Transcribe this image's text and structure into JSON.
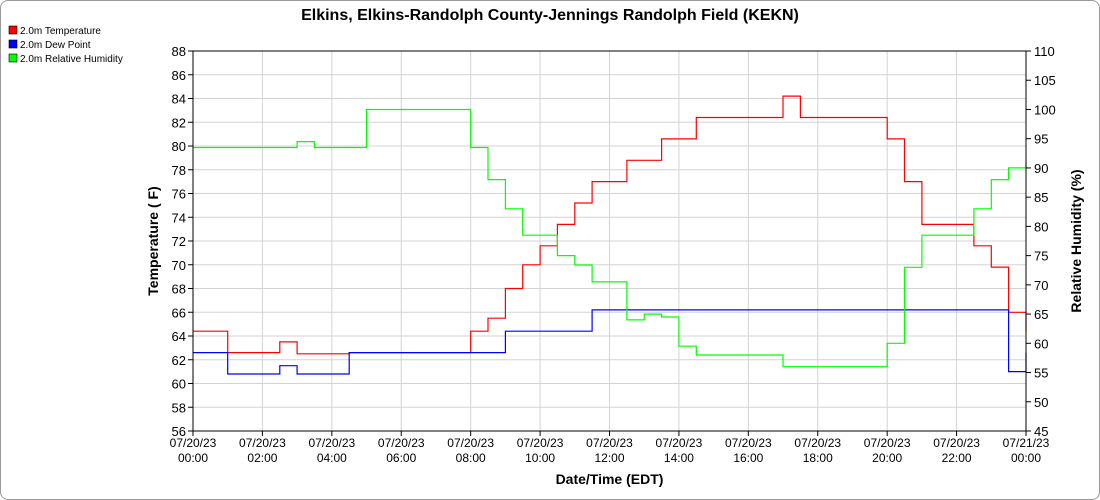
{
  "chart_data": {
    "type": "line",
    "title": "Elkins, Elkins-Randolph County-Jennings Randolph Field (KEKN)",
    "xlabel": "Date/Time (EDT)",
    "ylabel": "Temperature ( F)",
    "y2label": "Relative Humidity (%)",
    "ylim": [
      56,
      88
    ],
    "y2lim": [
      45,
      110
    ],
    "y_ticks": [
      "56",
      "58",
      "60",
      "62",
      "64",
      "66",
      "68",
      "70",
      "72",
      "74",
      "76",
      "78",
      "80",
      "82",
      "84",
      "86",
      "88"
    ],
    "y2_ticks": [
      "45",
      "50",
      "55",
      "60",
      "65",
      "70",
      "75",
      "80",
      "85",
      "90",
      "95",
      "100",
      "105",
      "110"
    ],
    "x_tick_dates": [
      "07/20/23",
      "07/20/23",
      "07/20/23",
      "07/20/23",
      "07/20/23",
      "07/20/23",
      "07/20/23",
      "07/20/23",
      "07/20/23",
      "07/20/23",
      "07/20/23",
      "07/20/23",
      "07/21/23"
    ],
    "x_tick_times": [
      "00:00",
      "02:00",
      "04:00",
      "06:00",
      "08:00",
      "10:00",
      "12:00",
      "14:00",
      "16:00",
      "18:00",
      "20:00",
      "22:00",
      "00:00"
    ],
    "grid": true,
    "legend_position": "top-left",
    "x_hours": [
      0,
      0.5,
      1,
      1.5,
      2,
      2.5,
      3,
      3.5,
      4,
      4.5,
      5,
      5.5,
      6,
      6.5,
      7,
      7.5,
      8,
      8.5,
      9,
      9.5,
      10,
      10.5,
      11,
      11.5,
      12,
      12.5,
      13,
      13.5,
      14,
      14.5,
      15,
      15.5,
      16,
      16.5,
      17,
      17.5,
      18,
      18.5,
      19,
      19.5,
      20,
      20.5,
      21,
      21.5,
      22,
      22.5,
      23,
      23.5,
      24
    ],
    "series": [
      {
        "name": "2.0m Temperature",
        "color": "#ff0000",
        "axis": "left",
        "values": [
          64.4,
          64.4,
          62.6,
          62.6,
          62.6,
          63.5,
          62.5,
          62.5,
          62.5,
          62.6,
          62.6,
          62.6,
          62.6,
          62.6,
          62.6,
          62.6,
          64.4,
          65.5,
          68,
          70,
          71.6,
          73.4,
          75.2,
          77,
          77,
          78.8,
          78.8,
          80.6,
          80.6,
          82.4,
          82.4,
          82.4,
          82.4,
          82.4,
          84.2,
          82.4,
          82.4,
          82.4,
          82.4,
          82.4,
          80.6,
          77,
          73.4,
          73.4,
          73.4,
          71.6,
          69.8,
          66,
          64.4
        ]
      },
      {
        "name": "2.0m Dew Point",
        "color": "#0000ff",
        "axis": "left",
        "values": [
          62.6,
          62.6,
          60.8,
          60.8,
          60.8,
          61.5,
          60.8,
          60.8,
          60.8,
          62.6,
          62.6,
          62.6,
          62.6,
          62.6,
          62.6,
          62.6,
          62.6,
          62.6,
          64.4,
          64.4,
          64.4,
          64.4,
          64.4,
          66.2,
          66.2,
          66.2,
          66.2,
          66.2,
          66.2,
          66.2,
          66.2,
          66.2,
          66.2,
          66.2,
          66.2,
          66.2,
          66.2,
          66.2,
          66.2,
          66.2,
          66.2,
          66.2,
          66.2,
          66.2,
          66.2,
          66.2,
          66.2,
          61,
          62.6
        ]
      },
      {
        "name": "2.0m Relative Humidity",
        "color": "#00ff00",
        "axis": "right",
        "values": [
          93.5,
          93.5,
          93.5,
          93.5,
          93.5,
          93.5,
          94.5,
          93.5,
          93.5,
          93.5,
          100,
          100,
          100,
          100,
          100,
          100,
          93.5,
          88,
          83,
          78.5,
          78.5,
          75,
          73.4,
          70.5,
          70.5,
          64,
          65,
          64.5,
          59.5,
          58,
          58,
          58,
          58,
          58,
          56,
          56,
          56,
          56,
          56,
          56,
          60,
          73,
          78.5,
          78.5,
          78.5,
          83,
          88,
          90,
          91
        ]
      }
    ]
  }
}
